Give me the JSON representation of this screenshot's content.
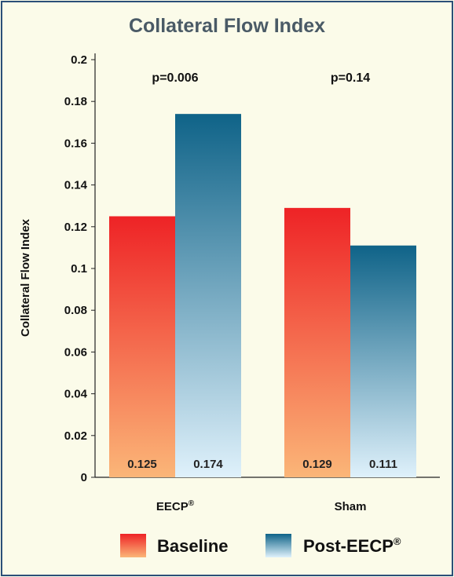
{
  "chart_data": {
    "type": "bar",
    "title": "Collateral Flow Index",
    "ylabel": "Collateral Flow Index",
    "xlabel": "",
    "ylim": [
      0,
      0.2
    ],
    "yticks": [
      "0",
      "0.02",
      "0.04",
      "0.06",
      "0.08",
      "0.1",
      "0.12",
      "0.14",
      "0.16",
      "0.18",
      "0.2"
    ],
    "categories": [
      {
        "label": "EECP",
        "sup": "®"
      },
      {
        "label": "Sham",
        "sup": ""
      }
    ],
    "series": [
      {
        "name": "Baseline",
        "sup": "",
        "values": [
          0.125,
          0.129
        ],
        "labels": [
          "0.125",
          "0.129"
        ]
      },
      {
        "name": "Post-EECP",
        "sup": "®",
        "values": [
          0.174,
          0.111
        ],
        "labels": [
          "0.174",
          "0.111"
        ]
      }
    ],
    "annotations": [
      "p=0.006",
      "p=0.14"
    ],
    "legend_position": "bottom",
    "colors": {
      "baseline_top": "#ee2326",
      "baseline_bottom": "#fbb678",
      "post_top": "#0f6388",
      "post_bottom": "#dff1fb"
    }
  }
}
